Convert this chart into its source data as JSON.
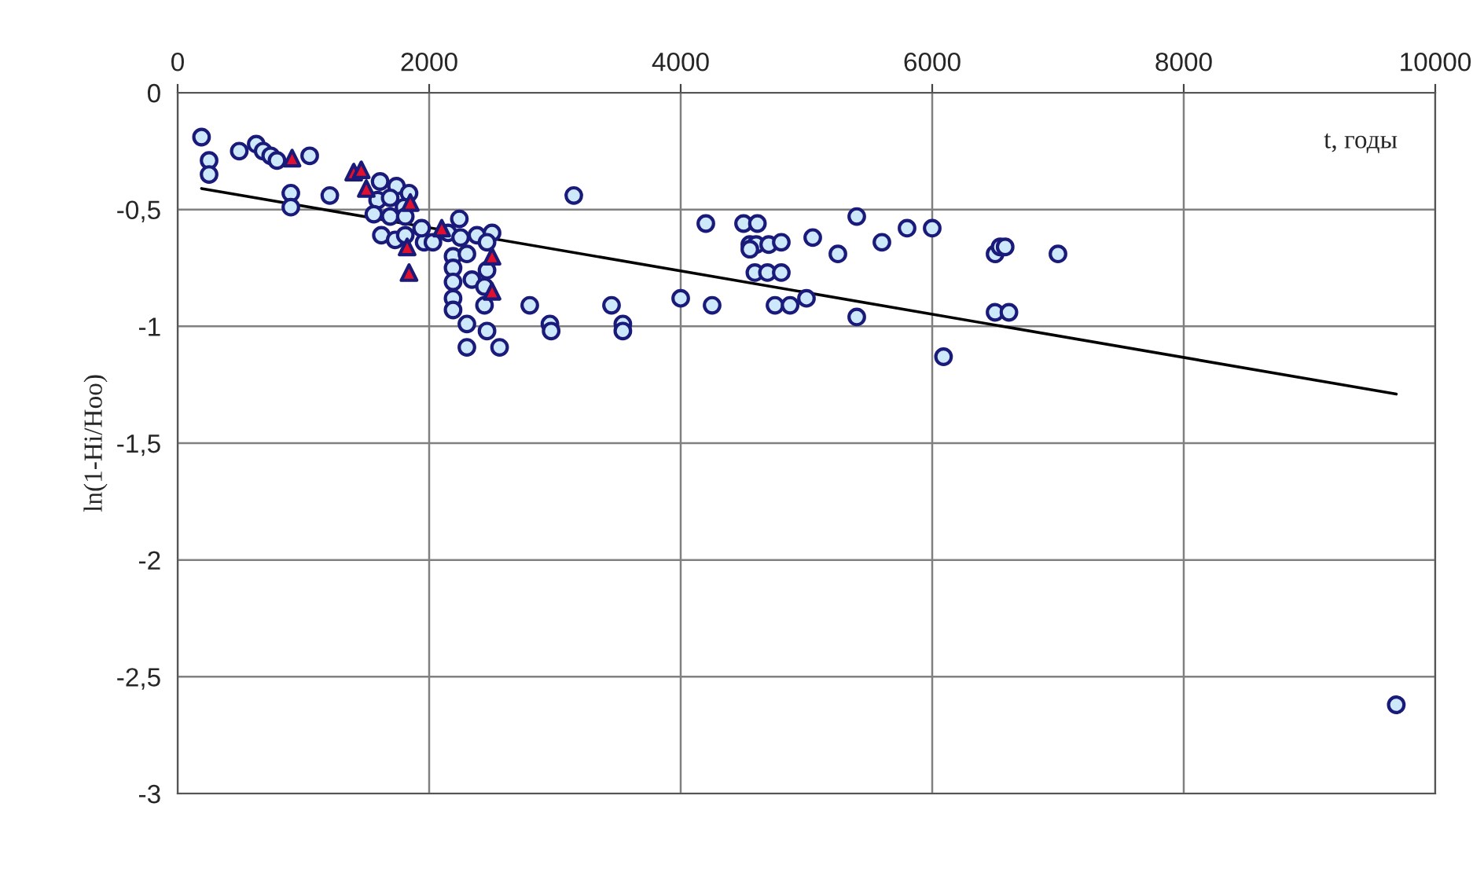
{
  "chart_data": {
    "type": "scatter",
    "xlabel": "t, годы",
    "ylabel": "ln(1-Hi/Hoo)",
    "xlim": [
      0,
      10000
    ],
    "xticks": [
      0,
      2000,
      4000,
      6000,
      8000,
      10000
    ],
    "ylim": [
      -3,
      0
    ],
    "yticks": [
      {
        "value": -3,
        "label": "-3"
      },
      {
        "value": -2.5,
        "label": "-2,5"
      },
      {
        "value": -2,
        "label": "-2"
      },
      {
        "value": -1.5,
        "label": "-1,5"
      },
      {
        "value": -1,
        "label": "-1"
      },
      {
        "value": -0.5,
        "label": "-0,5"
      },
      {
        "value": 0,
        "label": "0"
      }
    ],
    "grid": true,
    "legend": false,
    "series": [
      {
        "marker": "circle",
        "color": "#cce8fa",
        "x": [
          190,
          250,
          250,
          490,
          625,
          680,
          740,
          790,
          1050,
          900,
          900,
          1210,
          1610,
          1740,
          1840,
          1590,
          1690,
          1800,
          1560,
          1690,
          1810,
          1620,
          1730,
          1810,
          1960,
          2030,
          1940,
          2240,
          2150,
          2250,
          2380,
          2500,
          2460,
          2190,
          2190,
          2190,
          2190,
          2190,
          2300,
          2340,
          2300,
          2460,
          2440,
          2440,
          2460,
          2300,
          2560,
          2800,
          2960,
          2970,
          3150,
          4200,
          4500,
          4610,
          4550,
          4600,
          4700,
          4550,
          4800,
          5050,
          5250,
          5400,
          5600,
          5800,
          6000,
          6500,
          6540,
          6580,
          7000,
          4590,
          4690,
          4800,
          3450,
          4000,
          4250,
          4750,
          4870,
          5000,
          5400,
          6500,
          6610,
          3540,
          3540,
          6090,
          9690
        ],
        "values": [
          -0.19,
          -0.29,
          -0.35,
          -0.25,
          -0.22,
          -0.25,
          -0.27,
          -0.29,
          -0.27,
          -0.43,
          -0.49,
          -0.44,
          -0.38,
          -0.4,
          -0.43,
          -0.46,
          -0.45,
          -0.49,
          -0.52,
          -0.53,
          -0.53,
          -0.61,
          -0.63,
          -0.61,
          -0.64,
          -0.64,
          -0.58,
          -0.54,
          -0.6,
          -0.62,
          -0.61,
          -0.6,
          -0.64,
          -0.7,
          -0.75,
          -0.81,
          -0.88,
          -0.93,
          -0.69,
          -0.8,
          -0.99,
          -0.76,
          -0.83,
          -0.91,
          -1.02,
          -1.09,
          -1.09,
          -0.91,
          -0.99,
          -1.02,
          -0.44,
          -0.56,
          -0.56,
          -0.56,
          -0.65,
          -0.65,
          -0.65,
          -0.67,
          -0.64,
          -0.62,
          -0.69,
          -0.53,
          -0.64,
          -0.58,
          -0.58,
          -0.69,
          -0.66,
          -0.66,
          -0.69,
          -0.77,
          -0.77,
          -0.77,
          -0.91,
          -0.88,
          -0.91,
          -0.91,
          -0.91,
          -0.88,
          -0.96,
          -0.94,
          -0.94,
          -0.99,
          -1.02,
          -1.13,
          -2.62
        ]
      },
      {
        "marker": "triangle",
        "color": "#e0102f",
        "x": [
          910,
          1400,
          1460,
          1500,
          1850,
          1825,
          1840,
          2100,
          2500,
          2500
        ],
        "values": [
          -0.28,
          -0.34,
          -0.33,
          -0.41,
          -0.47,
          -0.66,
          -0.77,
          -0.58,
          -0.7,
          -0.85
        ]
      },
      {
        "type": "line",
        "color": "#000000",
        "x": [
          190,
          9690
        ],
        "values": [
          -0.41,
          -1.29
        ]
      }
    ]
  }
}
